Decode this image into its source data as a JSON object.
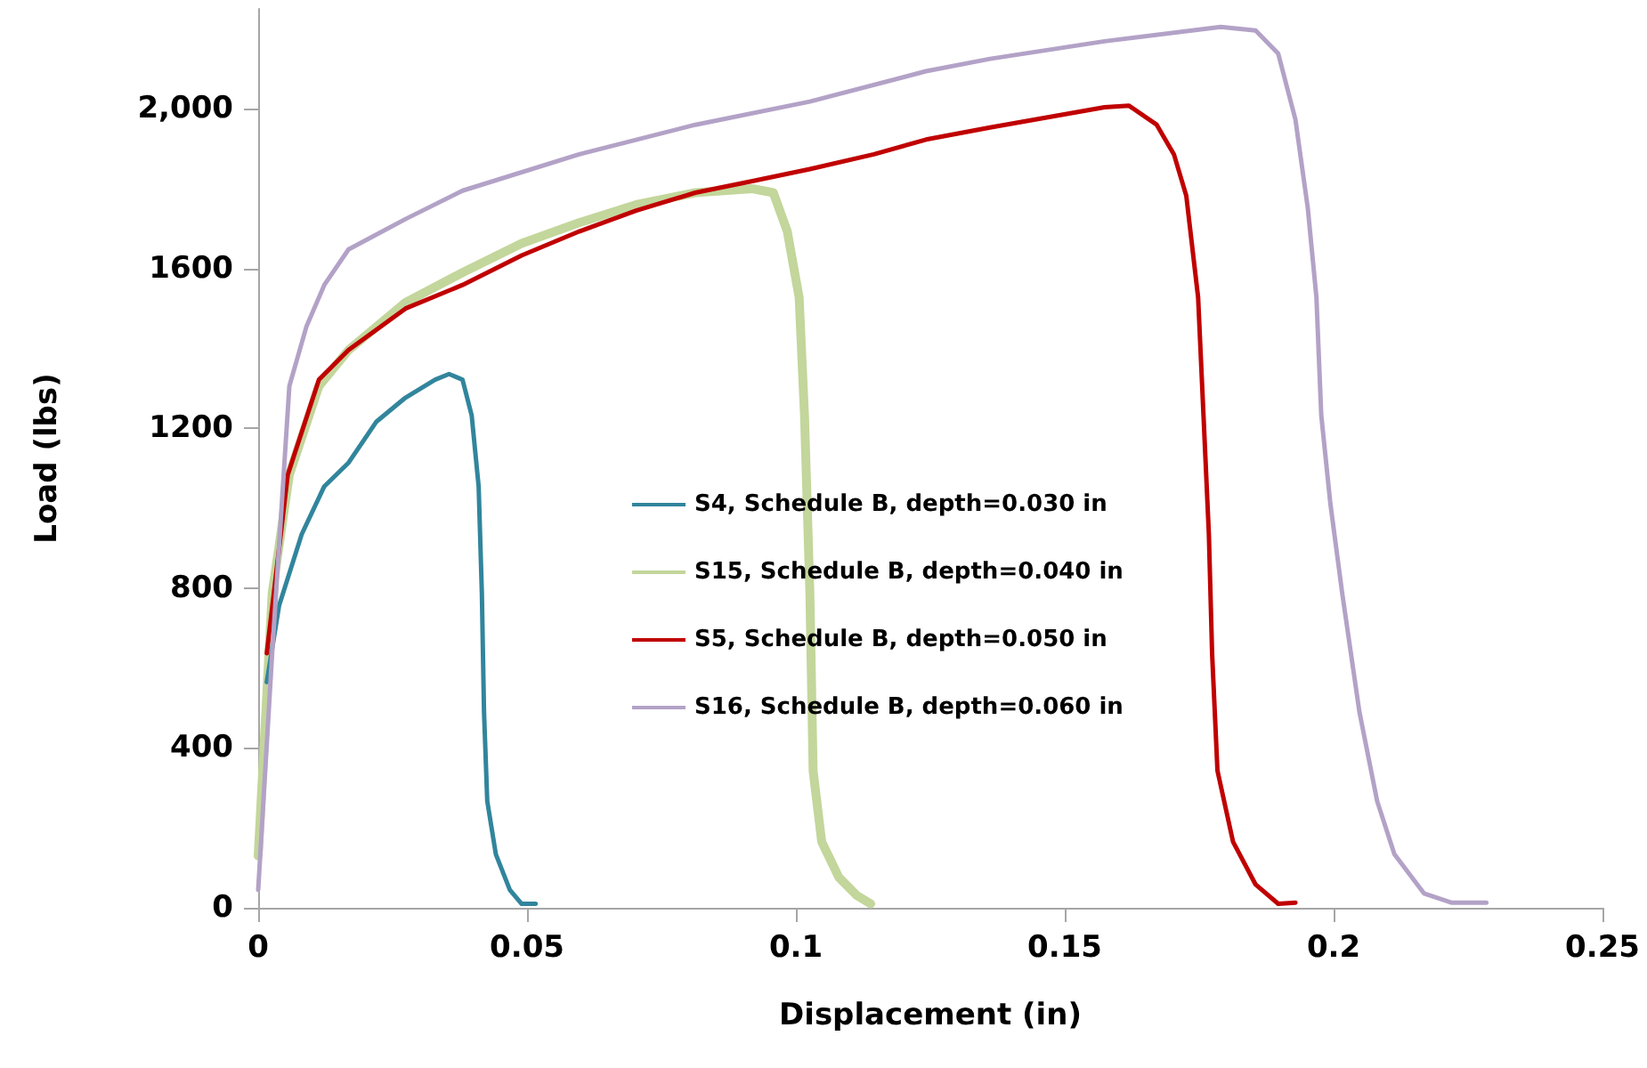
{
  "chart_data": {
    "type": "line",
    "xlabel": "Displacement (in)",
    "ylabel": "Load (lbs)",
    "xlim": [
      0,
      0.25
    ],
    "xticks": [
      0,
      0.05,
      0.1,
      0.15,
      0.2,
      0.25
    ],
    "ylim": [
      0,
      2250
    ],
    "yticks": [
      0,
      400,
      800,
      1200,
      1600,
      {
        "value": 2000,
        "label": "2,000"
      }
    ],
    "grid": false,
    "legend": "center",
    "marker": "none",
    "line_style": "solid",
    "series": [
      {
        "name": "S4, Schedule B, depth=0.030 in",
        "color": "#31859c",
        "x": [
          0.0016,
          0.0039,
          0.0081,
          0.0123,
          0.0168,
          0.022,
          0.0274,
          0.0329,
          0.0355,
          0.038,
          0.0397,
          0.041,
          0.0416,
          0.042,
          0.0426,
          0.0442,
          0.0468,
          0.049,
          0.0516
        ],
        "values": [
          565,
          757,
          935,
          1055,
          1114,
          1217,
          1277,
          1322,
          1336,
          1322,
          1233,
          1055,
          787,
          490,
          267,
          134,
          45,
          10,
          10
        ]
      },
      {
        "name": "S15, Schedule B, depth=0.040 in",
        "color": "#c3d69b",
        "x": [
          0,
          0.0026,
          0.0058,
          0.0113,
          0.0168,
          0.0274,
          0.038,
          0.049,
          0.0597,
          0.0703,
          0.0813,
          0.0919,
          0.0958,
          0.0984,
          0.1006,
          0.1016,
          0.1026,
          0.1032,
          0.1048,
          0.108,
          0.1113,
          0.1139
        ],
        "values": [
          130,
          787,
          1084,
          1306,
          1396,
          1515,
          1590,
          1663,
          1715,
          1760,
          1790,
          1800,
          1790,
          1693,
          1528,
          1233,
          787,
          343,
          165,
          76,
          31,
          10
        ]
      },
      {
        "name": "S5, Schedule B, depth=0.050 in",
        "color": "#c00000",
        "x": [
          0.0016,
          0.0055,
          0.0113,
          0.0168,
          0.0274,
          0.038,
          0.049,
          0.0597,
          0.0703,
          0.0813,
          0.0919,
          0.1026,
          0.1145,
          0.1242,
          0.1361,
          0.1574,
          0.1619,
          0.1671,
          0.1703,
          0.1726,
          0.1748,
          0.1758,
          0.1768,
          0.1774,
          0.1784,
          0.1813,
          0.1855,
          0.1897,
          0.1929
        ],
        "values": [
          637,
          1084,
          1322,
          1396,
          1500,
          1559,
          1633,
          1693,
          1745,
          1790,
          1819,
          1849,
          1886,
          1923,
          1953,
          2004,
          2008,
          1960,
          1886,
          1782,
          1528,
          1233,
          935,
          637,
          343,
          165,
          58,
          10,
          13
        ]
      },
      {
        "name": "S16, Schedule B, depth=0.060 in",
        "color": "#b3a2c7",
        "x": [
          0,
          0.0026,
          0.0058,
          0.009,
          0.0123,
          0.0168,
          0.0274,
          0.038,
          0.0597,
          0.0813,
          0.1026,
          0.1242,
          0.1361,
          0.1574,
          0.179,
          0.1855,
          0.1897,
          0.1929,
          0.1952,
          0.1968,
          0.1977,
          0.1994,
          0.2016,
          0.2048,
          0.2081,
          0.2113,
          0.2168,
          0.2219,
          0.2284
        ],
        "values": [
          45,
          637,
          1306,
          1456,
          1559,
          1648,
          1724,
          1795,
          1886,
          1960,
          2018,
          2094,
          2125,
          2169,
          2205,
          2196,
          2138,
          1973,
          1751,
          1528,
          1233,
          1011,
          787,
          490,
          267,
          134,
          36,
          13,
          13
        ]
      }
    ]
  }
}
